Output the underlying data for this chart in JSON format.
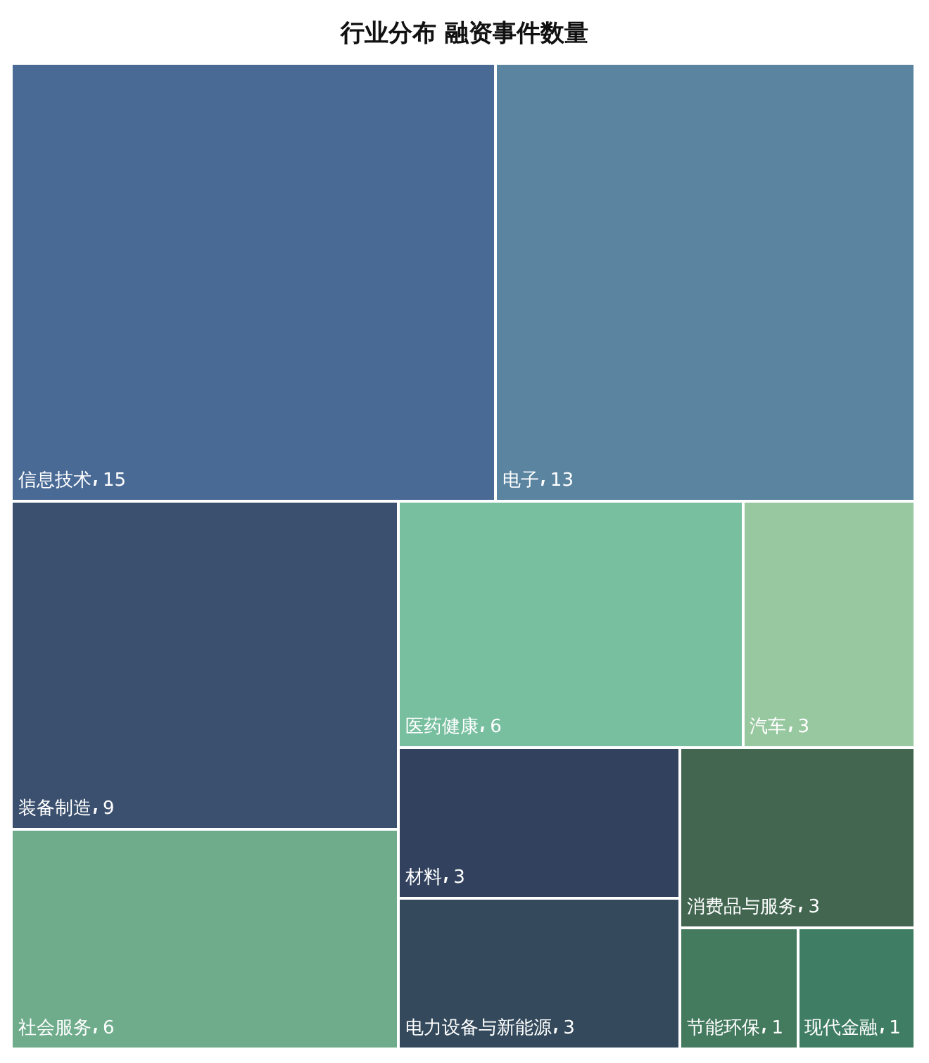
{
  "chart_data": {
    "type": "other",
    "title": "行业分布 融资事件数量",
    "categories": [
      "信息技术",
      "电子",
      "装备制造",
      "社会服务",
      "医药健康",
      "汽车",
      "材料",
      "电力设备与新能源",
      "消费品与服务",
      "节能环保",
      "现代金融"
    ],
    "values": [
      15,
      13,
      9,
      6,
      6,
      3,
      3,
      3,
      3,
      1,
      1
    ],
    "colors": [
      "#4a6a96",
      "#5a84a0",
      "#3a506e",
      "#6eac8c",
      "#78bfa0",
      "#98c8a0",
      "#32425e",
      "#344a5c",
      "#426650",
      "#447a5e",
      "#3f7d64"
    ],
    "data_labels": true
  }
}
